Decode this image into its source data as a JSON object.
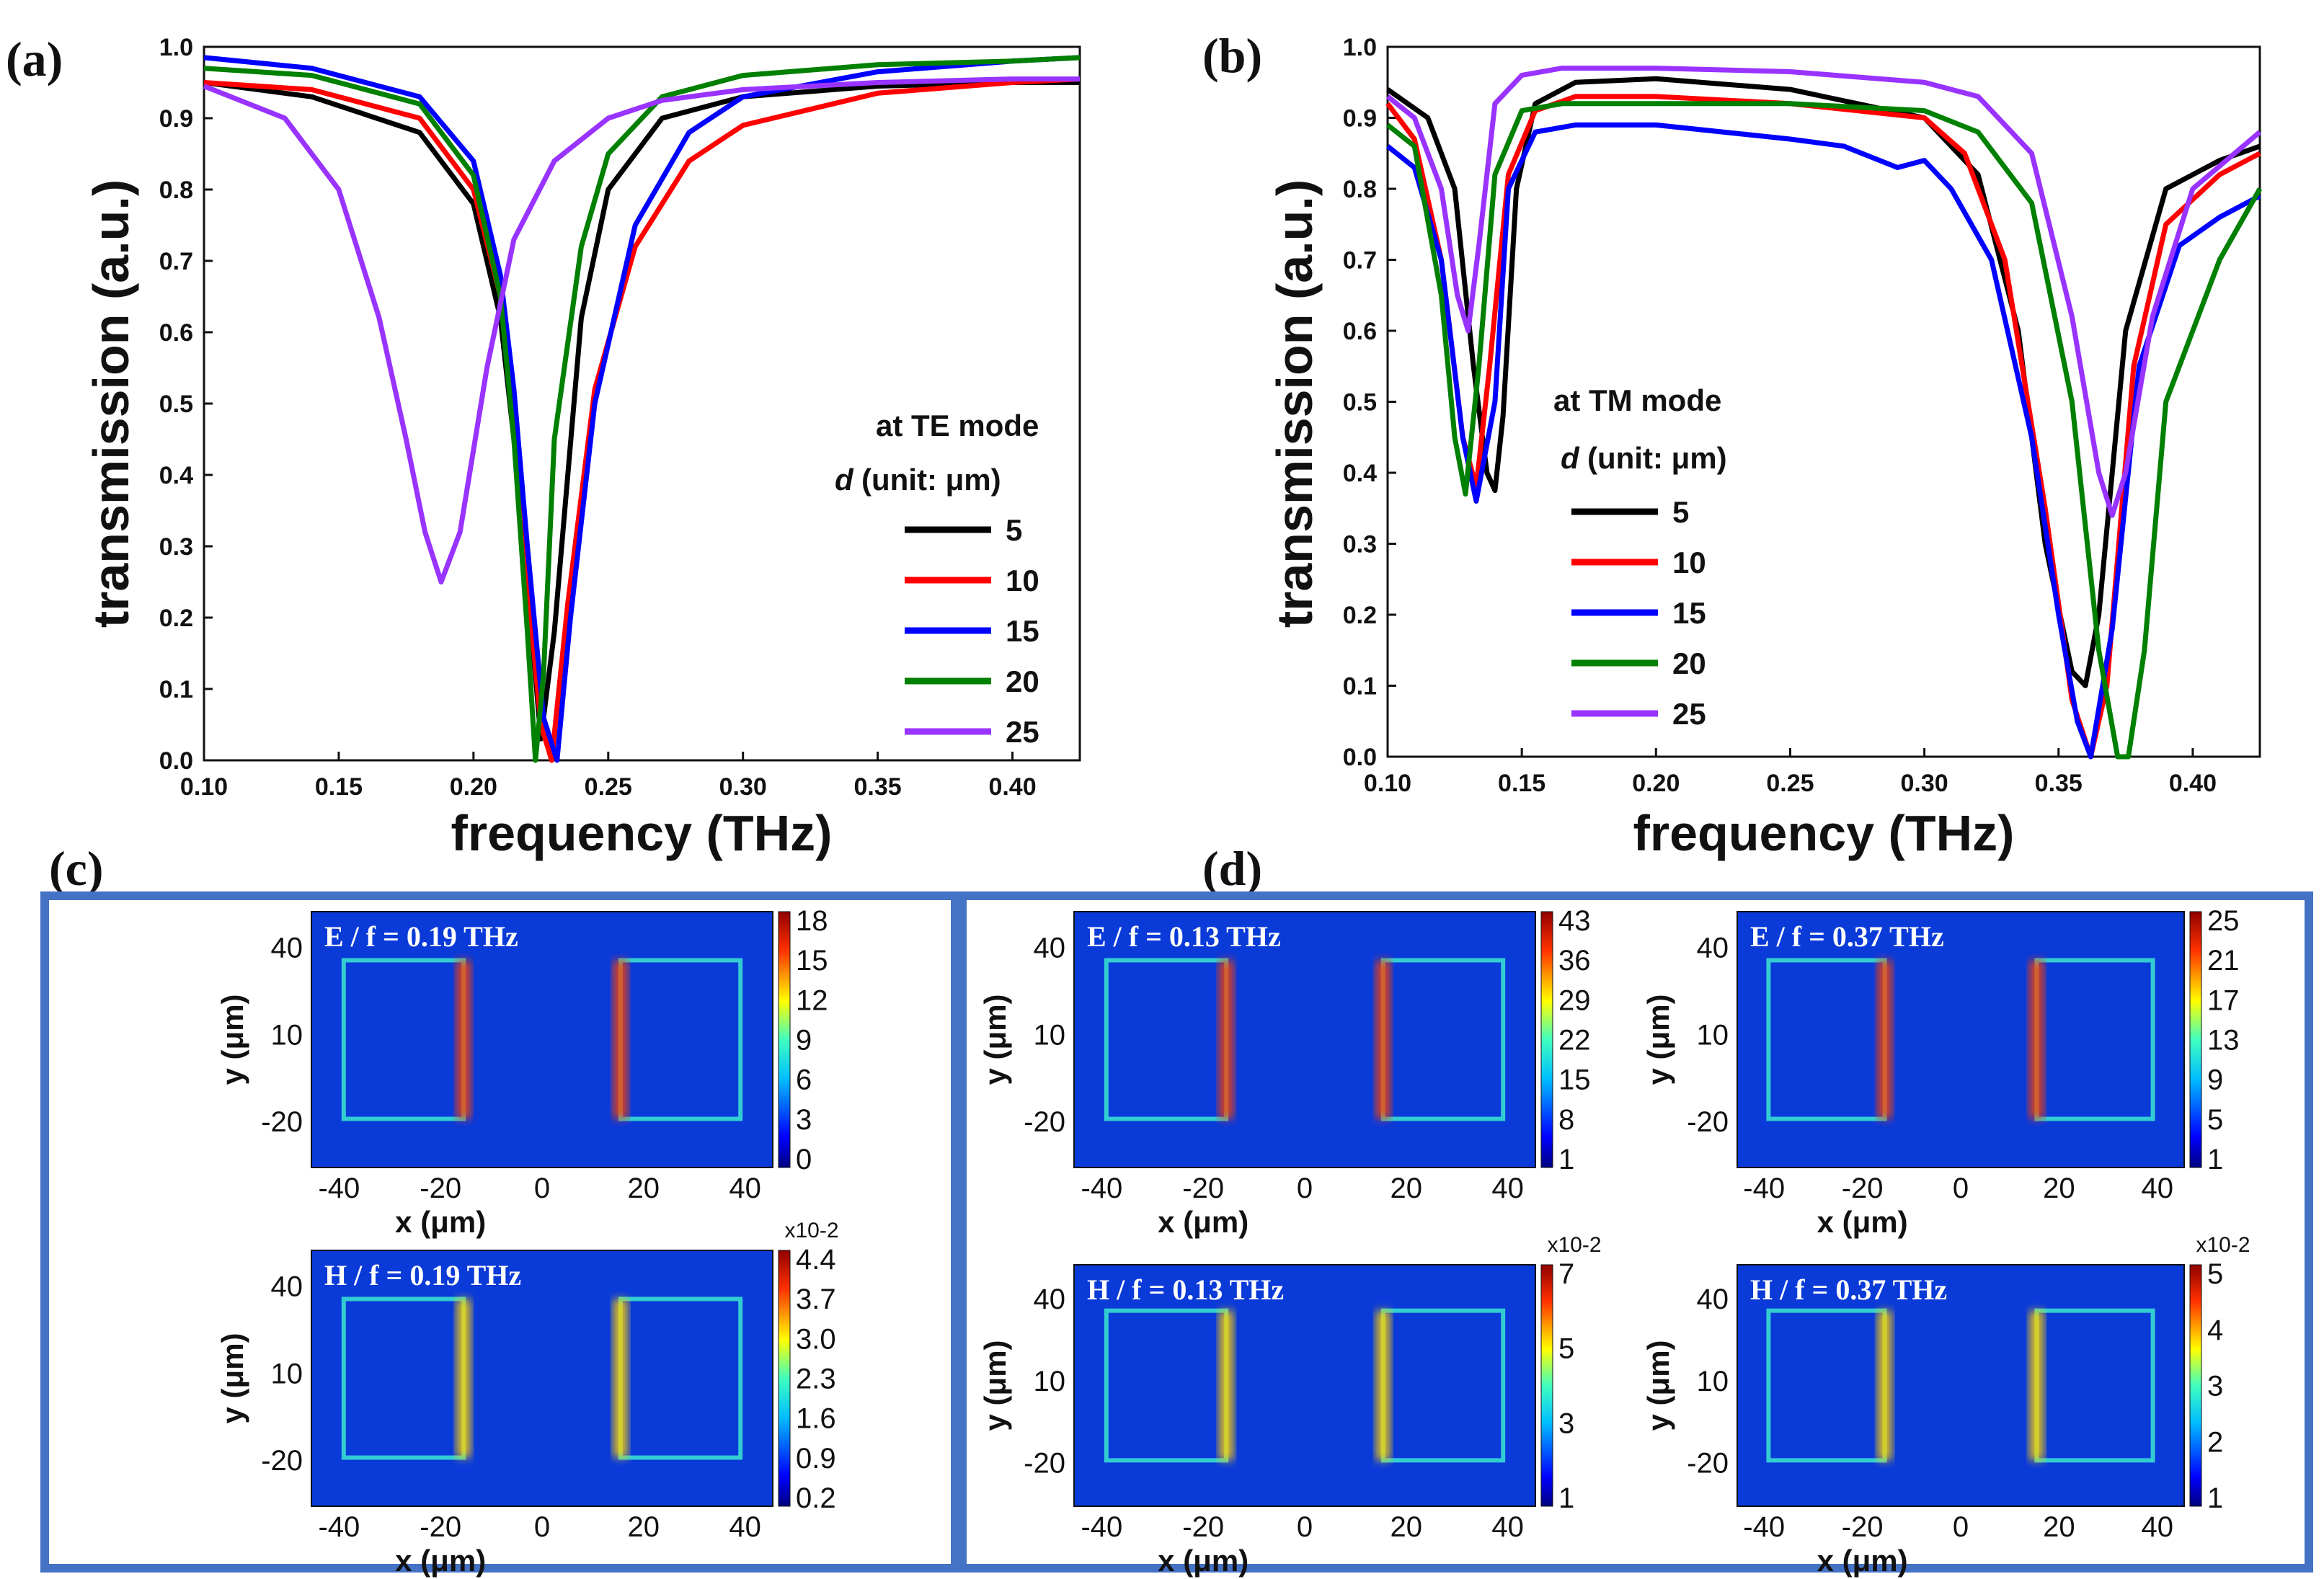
{
  "panel_labels": [
    "(a)",
    "(b)",
    "(c)",
    "(d)"
  ],
  "chart_data": [
    {
      "type": "line",
      "panel": "(a)",
      "xlabel": "frequency (THz)",
      "ylabel": "transmission (a.u.)",
      "xlim": [
        0.1,
        0.425
      ],
      "ylim": [
        0.0,
        1.0
      ],
      "xticks": [
        "0.10",
        "0.15",
        "0.20",
        "0.25",
        "0.30",
        "0.35",
        "0.40"
      ],
      "yticks": [
        "0.0",
        "0.1",
        "0.2",
        "0.3",
        "0.4",
        "0.5",
        "0.6",
        "0.7",
        "0.8",
        "0.9",
        "1.0"
      ],
      "legend_title": "at TE mode",
      "legend_subtitle_var": "d",
      "legend_subtitle": "(unit: μm)",
      "legend_position": "middle-right",
      "series": [
        {
          "name": "5",
          "color": "#000000",
          "x": [
            0.1,
            0.14,
            0.18,
            0.2,
            0.21,
            0.215,
            0.22,
            0.225,
            0.23,
            0.24,
            0.25,
            0.27,
            0.3,
            0.35,
            0.4,
            0.425
          ],
          "values": [
            0.95,
            0.93,
            0.88,
            0.78,
            0.62,
            0.45,
            0.25,
            0.03,
            0.18,
            0.62,
            0.8,
            0.9,
            0.93,
            0.945,
            0.95,
            0.95
          ]
        },
        {
          "name": "10",
          "color": "#ff0000",
          "x": [
            0.1,
            0.14,
            0.18,
            0.2,
            0.21,
            0.215,
            0.22,
            0.225,
            0.229,
            0.235,
            0.245,
            0.26,
            0.28,
            0.3,
            0.35,
            0.4,
            0.425
          ],
          "values": [
            0.95,
            0.94,
            0.9,
            0.8,
            0.65,
            0.48,
            0.25,
            0.05,
            0.0,
            0.22,
            0.52,
            0.72,
            0.84,
            0.89,
            0.935,
            0.95,
            0.955
          ]
        },
        {
          "name": "15",
          "color": "#0000ff",
          "x": [
            0.1,
            0.14,
            0.18,
            0.2,
            0.21,
            0.215,
            0.22,
            0.226,
            0.231,
            0.236,
            0.245,
            0.26,
            0.28,
            0.3,
            0.35,
            0.4,
            0.425
          ],
          "values": [
            0.985,
            0.97,
            0.93,
            0.84,
            0.68,
            0.52,
            0.3,
            0.06,
            0.0,
            0.2,
            0.5,
            0.75,
            0.88,
            0.93,
            0.965,
            0.98,
            0.985
          ]
        },
        {
          "name": "20",
          "color": "#008000",
          "x": [
            0.1,
            0.14,
            0.18,
            0.2,
            0.21,
            0.215,
            0.22,
            0.223,
            0.226,
            0.23,
            0.24,
            0.25,
            0.27,
            0.3,
            0.35,
            0.4,
            0.425
          ],
          "values": [
            0.97,
            0.96,
            0.92,
            0.82,
            0.65,
            0.45,
            0.18,
            0.0,
            0.12,
            0.45,
            0.72,
            0.85,
            0.93,
            0.96,
            0.975,
            0.98,
            0.985
          ]
        },
        {
          "name": "25",
          "color": "#9933ff",
          "x": [
            0.1,
            0.13,
            0.15,
            0.165,
            0.175,
            0.182,
            0.188,
            0.195,
            0.205,
            0.215,
            0.23,
            0.25,
            0.27,
            0.3,
            0.35,
            0.4,
            0.425
          ],
          "values": [
            0.945,
            0.9,
            0.8,
            0.62,
            0.45,
            0.32,
            0.25,
            0.32,
            0.55,
            0.73,
            0.84,
            0.9,
            0.925,
            0.94,
            0.95,
            0.955,
            0.955
          ]
        }
      ]
    },
    {
      "type": "line",
      "panel": "(b)",
      "xlabel": "frequency (THz)",
      "ylabel": "transmission (a.u.)",
      "xlim": [
        0.1,
        0.425
      ],
      "ylim": [
        0.0,
        1.0
      ],
      "xticks": [
        "0.10",
        "0.15",
        "0.20",
        "0.25",
        "0.30",
        "0.35",
        "0.40"
      ],
      "yticks": [
        "0.0",
        "0.1",
        "0.2",
        "0.3",
        "0.4",
        "0.5",
        "0.6",
        "0.7",
        "0.8",
        "0.9",
        "1.0"
      ],
      "legend_title": "at TM mode",
      "legend_subtitle_var": "d",
      "legend_subtitle": "(unit: μm)",
      "legend_position": "middle-left",
      "series": [
        {
          "name": "5",
          "color": "#000000",
          "x": [
            0.1,
            0.115,
            0.125,
            0.132,
            0.137,
            0.14,
            0.143,
            0.148,
            0.155,
            0.17,
            0.2,
            0.25,
            0.3,
            0.32,
            0.335,
            0.345,
            0.355,
            0.36,
            0.365,
            0.375,
            0.39,
            0.41,
            0.425
          ],
          "values": [
            0.94,
            0.9,
            0.8,
            0.55,
            0.4,
            0.375,
            0.48,
            0.8,
            0.92,
            0.95,
            0.955,
            0.94,
            0.9,
            0.82,
            0.6,
            0.3,
            0.12,
            0.1,
            0.2,
            0.6,
            0.8,
            0.84,
            0.86
          ]
        },
        {
          "name": "10",
          "color": "#ff0000",
          "x": [
            0.1,
            0.11,
            0.12,
            0.128,
            0.133,
            0.138,
            0.145,
            0.155,
            0.17,
            0.2,
            0.25,
            0.3,
            0.315,
            0.33,
            0.345,
            0.355,
            0.362,
            0.368,
            0.378,
            0.39,
            0.41,
            0.425
          ],
          "values": [
            0.92,
            0.87,
            0.7,
            0.45,
            0.38,
            0.55,
            0.82,
            0.91,
            0.93,
            0.93,
            0.92,
            0.9,
            0.85,
            0.7,
            0.35,
            0.08,
            0.0,
            0.1,
            0.55,
            0.75,
            0.82,
            0.85
          ]
        },
        {
          "name": "15",
          "color": "#0000ff",
          "x": [
            0.1,
            0.11,
            0.12,
            0.128,
            0.133,
            0.14,
            0.145,
            0.155,
            0.17,
            0.2,
            0.25,
            0.27,
            0.29,
            0.3,
            0.31,
            0.325,
            0.34,
            0.35,
            0.357,
            0.362,
            0.37,
            0.38,
            0.395,
            0.41,
            0.425
          ],
          "values": [
            0.86,
            0.83,
            0.7,
            0.45,
            0.36,
            0.5,
            0.8,
            0.88,
            0.89,
            0.89,
            0.87,
            0.86,
            0.83,
            0.84,
            0.8,
            0.7,
            0.45,
            0.2,
            0.05,
            0.0,
            0.18,
            0.55,
            0.72,
            0.76,
            0.79
          ]
        },
        {
          "name": "20",
          "color": "#008000",
          "x": [
            0.1,
            0.11,
            0.12,
            0.125,
            0.129,
            0.134,
            0.14,
            0.15,
            0.165,
            0.2,
            0.25,
            0.3,
            0.32,
            0.34,
            0.355,
            0.365,
            0.372,
            0.376,
            0.382,
            0.39,
            0.41,
            0.425
          ],
          "values": [
            0.89,
            0.86,
            0.65,
            0.45,
            0.37,
            0.55,
            0.82,
            0.91,
            0.92,
            0.92,
            0.92,
            0.91,
            0.88,
            0.78,
            0.5,
            0.15,
            0.0,
            0.0,
            0.15,
            0.5,
            0.7,
            0.8
          ]
        },
        {
          "name": "25",
          "color": "#9933ff",
          "x": [
            0.1,
            0.11,
            0.12,
            0.126,
            0.13,
            0.134,
            0.14,
            0.15,
            0.165,
            0.2,
            0.25,
            0.3,
            0.32,
            0.34,
            0.355,
            0.365,
            0.37,
            0.375,
            0.385,
            0.4,
            0.425
          ],
          "values": [
            0.93,
            0.9,
            0.8,
            0.65,
            0.6,
            0.72,
            0.92,
            0.96,
            0.97,
            0.97,
            0.965,
            0.95,
            0.93,
            0.85,
            0.62,
            0.4,
            0.34,
            0.4,
            0.62,
            0.8,
            0.88
          ]
        }
      ]
    },
    {
      "type": "heatmap",
      "panel": "(c)",
      "maps": [
        {
          "title": "E / f = 0.19 THz",
          "field": "E",
          "freq": "0.19",
          "xlabel": "x (μm)",
          "ylabel": "y (μm)",
          "xticks": [
            "-40",
            "-20",
            "0",
            "20",
            "40"
          ],
          "yticks": [
            "40",
            "10",
            "-20"
          ],
          "colorbar": [
            "18",
            "15",
            "12",
            "9",
            "6",
            "3",
            "0"
          ],
          "colorbar_scale": ""
        },
        {
          "title": "H / f = 0.19 THz",
          "field": "H",
          "freq": "0.19",
          "xlabel": "x (μm)",
          "ylabel": "y (μm)",
          "xticks": [
            "-40",
            "-20",
            "0",
            "20",
            "40"
          ],
          "yticks": [
            "40",
            "10",
            "-20"
          ],
          "colorbar": [
            "4.4",
            "3.7",
            "3.0",
            "2.3",
            "1.6",
            "0.9",
            "0.2"
          ],
          "colorbar_scale": "x10-2"
        }
      ]
    },
    {
      "type": "heatmap",
      "panel": "(d)",
      "maps": [
        {
          "title": "E / f = 0.13 THz",
          "field": "E",
          "freq": "0.13",
          "xlabel": "x (μm)",
          "ylabel": "y (μm)",
          "xticks": [
            "-40",
            "-20",
            "0",
            "20",
            "40"
          ],
          "yticks": [
            "40",
            "10",
            "-20"
          ],
          "colorbar": [
            "43",
            "36",
            "29",
            "22",
            "15",
            "8",
            "1"
          ],
          "colorbar_scale": ""
        },
        {
          "title": "E / f = 0.37 THz",
          "field": "E",
          "freq": "0.37",
          "xlabel": "x (μm)",
          "ylabel": "y (μm)",
          "xticks": [
            "-40",
            "-20",
            "0",
            "20",
            "40"
          ],
          "yticks": [
            "40",
            "10",
            "-20"
          ],
          "colorbar": [
            "25",
            "21",
            "17",
            "13",
            "9",
            "5",
            "1"
          ],
          "colorbar_scale": ""
        },
        {
          "title": "H / f = 0.13 THz",
          "field": "H",
          "freq": "0.13",
          "xlabel": "x (μm)",
          "ylabel": "y (μm)",
          "xticks": [
            "-40",
            "-20",
            "0",
            "20",
            "40"
          ],
          "yticks": [
            "40",
            "10",
            "-20"
          ],
          "colorbar": [
            "7",
            "5",
            "3",
            "1"
          ],
          "colorbar_scale": "x10-2"
        },
        {
          "title": "H / f = 0.37 THz",
          "field": "H",
          "freq": "0.37",
          "xlabel": "x (μm)",
          "ylabel": "y (μm)",
          "xticks": [
            "-40",
            "-20",
            "0",
            "20",
            "40"
          ],
          "yticks": [
            "40",
            "10",
            "-20"
          ],
          "colorbar": [
            "5",
            "4",
            "3",
            "2",
            "1"
          ],
          "colorbar_scale": "x10-2"
        }
      ]
    }
  ],
  "colors": {
    "frame": "#4472c4",
    "map_background": "#0a3ad8"
  }
}
